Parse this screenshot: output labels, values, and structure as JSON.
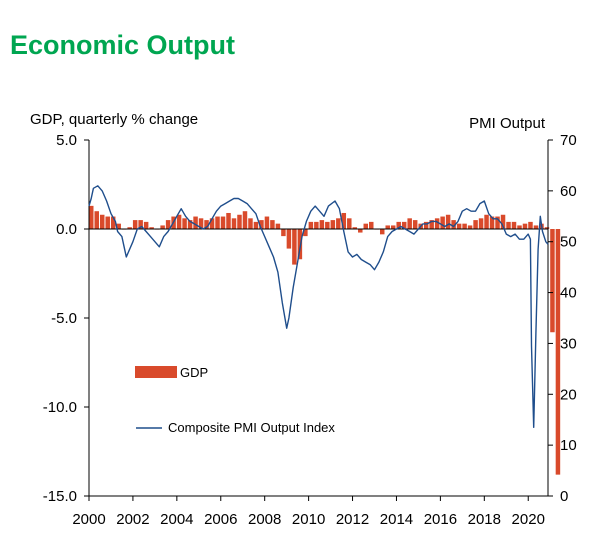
{
  "page": {
    "title": "Economic Output"
  },
  "colors": {
    "title": "#00a651",
    "gdp_bars": "#d94a2b",
    "pmi_line": "#1f4e8c",
    "axis": "#000000"
  },
  "chart_data": {
    "type": "bar+line",
    "title": "Economic Output",
    "left_axis": {
      "label": "GDP, quarterly % change",
      "range": [
        -15,
        5
      ],
      "ticks": [
        5,
        0,
        -5,
        -10,
        -15
      ],
      "tick_labels": [
        "5.0",
        "0.0",
        "-5.0",
        "-10.0",
        "-15.0"
      ]
    },
    "right_axis": {
      "label": "PMI Output",
      "range": [
        0,
        70
      ],
      "ticks": [
        70,
        60,
        50,
        40,
        30,
        20,
        10,
        0
      ],
      "tick_labels": [
        "70",
        "60",
        "50",
        "40",
        "30",
        "20",
        "10",
        "0"
      ]
    },
    "x_axis": {
      "range": [
        2000,
        2020.9
      ],
      "ticks": [
        2000,
        2002,
        2004,
        2006,
        2008,
        2010,
        2012,
        2014,
        2016,
        2018,
        2020
      ],
      "tick_labels": [
        "2000",
        "2002",
        "2004",
        "2006",
        "2008",
        "2010",
        "2012",
        "2014",
        "2016",
        "2018",
        "2020"
      ]
    },
    "legend": [
      {
        "name": "GDP",
        "kind": "bar"
      },
      {
        "name": "Composite PMI Output Index",
        "kind": "line"
      }
    ],
    "series": [
      {
        "name": "GDP",
        "axis": "left",
        "type": "bar",
        "start_year": 2000,
        "frequency": "quarterly",
        "values": [
          1.3,
          1.0,
          0.8,
          0.7,
          0.7,
          0.3,
          0.0,
          0.1,
          0.5,
          0.5,
          0.4,
          0.1,
          0.0,
          0.2,
          0.5,
          0.7,
          0.8,
          0.6,
          0.5,
          0.7,
          0.6,
          0.5,
          0.6,
          0.7,
          0.7,
          0.9,
          0.6,
          0.8,
          1.0,
          0.6,
          0.4,
          0.5,
          0.7,
          0.5,
          0.3,
          -0.4,
          -1.1,
          -2.0,
          -1.7,
          -0.4,
          0.4,
          0.4,
          0.5,
          0.4,
          0.5,
          0.6,
          0.9,
          0.6,
          0.1,
          -0.2,
          0.3,
          0.4,
          0.0,
          -0.3,
          0.2,
          0.2,
          0.4,
          0.4,
          0.6,
          0.5,
          0.3,
          0.4,
          0.5,
          0.6,
          0.7,
          0.8,
          0.5,
          0.3,
          0.3,
          0.2,
          0.5,
          0.6,
          0.8,
          0.7,
          0.7,
          0.8,
          0.4,
          0.4,
          0.2,
          0.3,
          0.4,
          0.2,
          0.3,
          0.1,
          -5.8,
          -13.8
        ]
      },
      {
        "name": "Composite PMI Output Index",
        "axis": "right",
        "type": "line",
        "points": [
          [
            2000.0,
            57.0
          ],
          [
            2000.1,
            58.5
          ],
          [
            2000.2,
            60.5
          ],
          [
            2000.4,
            61.0
          ],
          [
            2000.6,
            60.0
          ],
          [
            2000.8,
            58.0
          ],
          [
            2001.0,
            55.5
          ],
          [
            2001.2,
            54.0
          ],
          [
            2001.3,
            52.0
          ],
          [
            2001.5,
            51.0
          ],
          [
            2001.6,
            49.0
          ],
          [
            2001.7,
            47.0
          ],
          [
            2001.8,
            48.0
          ],
          [
            2002.0,
            50.0
          ],
          [
            2002.2,
            52.5
          ],
          [
            2002.4,
            53.0
          ],
          [
            2002.6,
            52.0
          ],
          [
            2002.8,
            51.0
          ],
          [
            2003.0,
            50.0
          ],
          [
            2003.2,
            49.0
          ],
          [
            2003.4,
            51.0
          ],
          [
            2003.6,
            52.0
          ],
          [
            2003.8,
            53.5
          ],
          [
            2004.0,
            55.0
          ],
          [
            2004.2,
            56.5
          ],
          [
            2004.4,
            55.0
          ],
          [
            2004.6,
            54.0
          ],
          [
            2004.8,
            53.5
          ],
          [
            2005.0,
            53.0
          ],
          [
            2005.2,
            52.5
          ],
          [
            2005.4,
            53.0
          ],
          [
            2005.6,
            54.5
          ],
          [
            2005.8,
            56.0
          ],
          [
            2006.0,
            57.0
          ],
          [
            2006.2,
            57.5
          ],
          [
            2006.4,
            58.0
          ],
          [
            2006.6,
            58.5
          ],
          [
            2006.8,
            58.5
          ],
          [
            2007.0,
            58.0
          ],
          [
            2007.2,
            57.5
          ],
          [
            2007.4,
            56.5
          ],
          [
            2007.6,
            55.5
          ],
          [
            2007.8,
            53.0
          ],
          [
            2008.0,
            51.0
          ],
          [
            2008.2,
            49.0
          ],
          [
            2008.4,
            47.0
          ],
          [
            2008.6,
            44.0
          ],
          [
            2008.8,
            38.0
          ],
          [
            2009.0,
            33.0
          ],
          [
            2009.1,
            35.0
          ],
          [
            2009.3,
            41.0
          ],
          [
            2009.5,
            46.0
          ],
          [
            2009.7,
            51.0
          ],
          [
            2009.9,
            54.0
          ],
          [
            2010.1,
            56.0
          ],
          [
            2010.3,
            57.0
          ],
          [
            2010.5,
            56.0
          ],
          [
            2010.7,
            55.0
          ],
          [
            2010.9,
            57.0
          ],
          [
            2011.2,
            58.0
          ],
          [
            2011.4,
            56.5
          ],
          [
            2011.6,
            52.0
          ],
          [
            2011.8,
            48.0
          ],
          [
            2012.0,
            47.0
          ],
          [
            2012.2,
            47.5
          ],
          [
            2012.4,
            46.5
          ],
          [
            2012.6,
            46.0
          ],
          [
            2012.8,
            45.5
          ],
          [
            2013.0,
            44.5
          ],
          [
            2013.2,
            46.0
          ],
          [
            2013.4,
            48.0
          ],
          [
            2013.6,
            51.0
          ],
          [
            2013.8,
            52.0
          ],
          [
            2014.0,
            52.5
          ],
          [
            2014.2,
            53.0
          ],
          [
            2014.4,
            52.5
          ],
          [
            2014.6,
            52.0
          ],
          [
            2014.8,
            51.5
          ],
          [
            2015.0,
            52.5
          ],
          [
            2015.2,
            53.5
          ],
          [
            2015.4,
            53.5
          ],
          [
            2015.6,
            54.0
          ],
          [
            2015.8,
            54.0
          ],
          [
            2016.0,
            53.5
          ],
          [
            2016.2,
            53.0
          ],
          [
            2016.4,
            53.5
          ],
          [
            2016.6,
            53.0
          ],
          [
            2016.8,
            54.0
          ],
          [
            2017.0,
            56.0
          ],
          [
            2017.2,
            56.5
          ],
          [
            2017.4,
            56.0
          ],
          [
            2017.6,
            56.0
          ],
          [
            2017.8,
            57.5
          ],
          [
            2018.0,
            58.0
          ],
          [
            2018.2,
            55.5
          ],
          [
            2018.4,
            54.5
          ],
          [
            2018.6,
            54.5
          ],
          [
            2018.8,
            53.5
          ],
          [
            2019.0,
            51.5
          ],
          [
            2019.2,
            51.0
          ],
          [
            2019.4,
            51.5
          ],
          [
            2019.6,
            50.5
          ],
          [
            2019.8,
            50.5
          ],
          [
            2020.0,
            51.5
          ],
          [
            2020.1,
            50.5
          ],
          [
            2020.15,
            29.5
          ],
          [
            2020.25,
            13.5
          ],
          [
            2020.35,
            32.0
          ],
          [
            2020.45,
            48.5
          ],
          [
            2020.55,
            55.0
          ],
          [
            2020.65,
            52.0
          ],
          [
            2020.8,
            50.0
          ],
          [
            2020.9,
            49.5
          ]
        ]
      }
    ]
  }
}
